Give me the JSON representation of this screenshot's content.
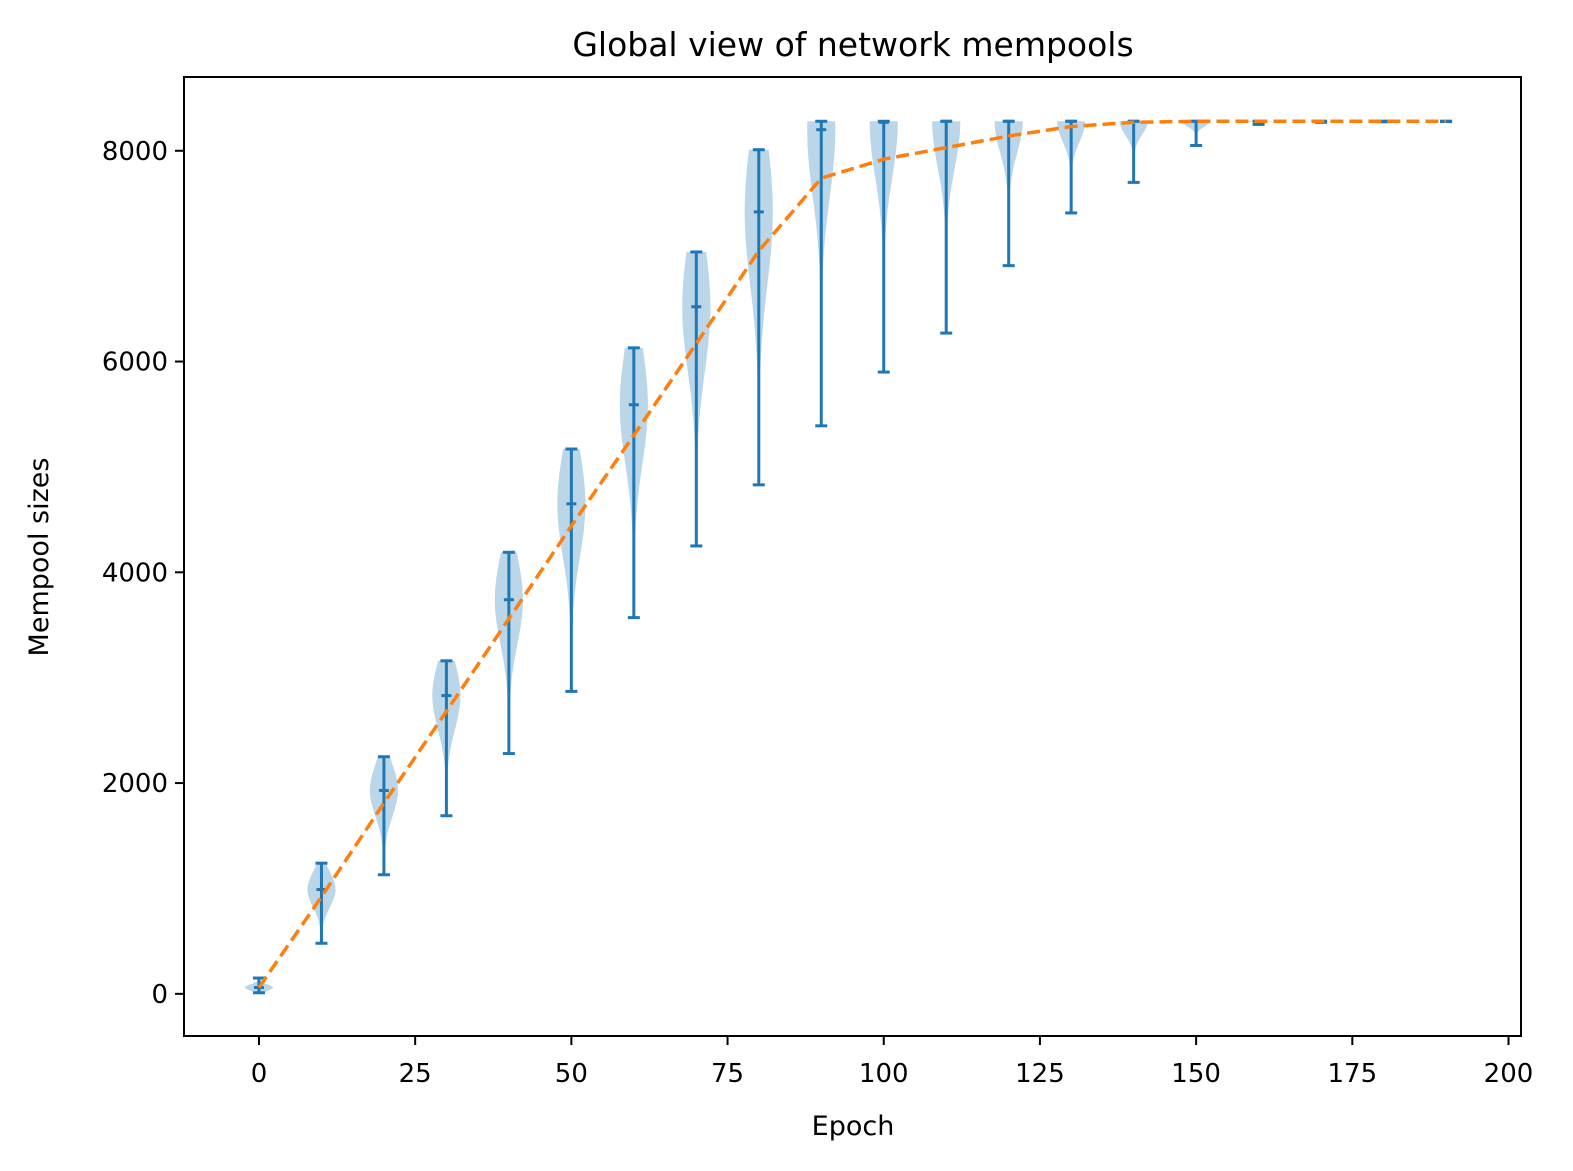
{
  "chart_data": {
    "type": "violin",
    "title": "Global view of network mempools",
    "xlabel": "Epoch",
    "ylabel": "Mempool sizes",
    "xlim": [
      -12,
      202
    ],
    "ylim": [
      -400,
      8700
    ],
    "xticks": [
      0,
      25,
      50,
      75,
      100,
      125,
      150,
      175,
      200
    ],
    "yticks": [
      0,
      2000,
      4000,
      6000,
      8000
    ],
    "grid": false,
    "colors": {
      "violin_fill": "#1f77b4",
      "violin_line": "#1f77b4",
      "mean_line": "#ff7f0e"
    },
    "violins": [
      {
        "x": 0,
        "min": 10,
        "max": 150,
        "median": 60,
        "width": 0.5,
        "body_alpha": 0.3
      },
      {
        "x": 10,
        "min": 480,
        "max": 1240,
        "median": 990,
        "width": 0.5
      },
      {
        "x": 20,
        "min": 1130,
        "max": 2250,
        "median": 1930,
        "width": 0.5
      },
      {
        "x": 30,
        "min": 1690,
        "max": 3160,
        "median": 2830,
        "width": 0.5
      },
      {
        "x": 40,
        "min": 2280,
        "max": 4190,
        "median": 3740,
        "width": 0.5
      },
      {
        "x": 50,
        "min": 2870,
        "max": 5170,
        "median": 4650,
        "width": 0.5
      },
      {
        "x": 60,
        "min": 3570,
        "max": 6130,
        "median": 5590,
        "width": 0.5
      },
      {
        "x": 70,
        "min": 4250,
        "max": 7040,
        "median": 6520,
        "width": 0.5
      },
      {
        "x": 80,
        "min": 4830,
        "max": 8010,
        "median": 7420,
        "width": 0.5
      },
      {
        "x": 90,
        "min": 5390,
        "max": 8280,
        "median": 8200,
        "width": 0.5
      },
      {
        "x": 100,
        "min": 5900,
        "max": 8280,
        "median": 8270,
        "width": 0.5
      },
      {
        "x": 110,
        "min": 6270,
        "max": 8280,
        "median": 8280,
        "width": 0.5
      },
      {
        "x": 120,
        "min": 6910,
        "max": 8280,
        "median": 8280,
        "width": 0.5
      },
      {
        "x": 130,
        "min": 7410,
        "max": 8280,
        "median": 8280,
        "width": 0.5
      },
      {
        "x": 140,
        "min": 7700,
        "max": 8280,
        "median": 8280,
        "width": 0.5
      },
      {
        "x": 150,
        "min": 8050,
        "max": 8280,
        "median": 8280,
        "width": 0.5
      },
      {
        "x": 160,
        "min": 8250,
        "max": 8280,
        "median": 8280,
        "width": 0.5
      },
      {
        "x": 170,
        "min": 8270,
        "max": 8280,
        "median": 8280,
        "width": 0.5
      },
      {
        "x": 180,
        "min": 8275,
        "max": 8280,
        "median": 8280,
        "width": 0.5
      },
      {
        "x": 190,
        "min": 8277,
        "max": 8280,
        "median": 8280,
        "width": 0.5
      }
    ],
    "mean_line": {
      "style": "dashed",
      "x": [
        0,
        10,
        20,
        30,
        40,
        50,
        60,
        70,
        80,
        90,
        100,
        110,
        120,
        130,
        140,
        150,
        160,
        170,
        180,
        190
      ],
      "y": [
        60,
        920,
        1810,
        2680,
        3560,
        4440,
        5300,
        6170,
        7050,
        7740,
        7920,
        8030,
        8140,
        8230,
        8270,
        8280,
        8280,
        8280,
        8280,
        8280
      ]
    }
  }
}
